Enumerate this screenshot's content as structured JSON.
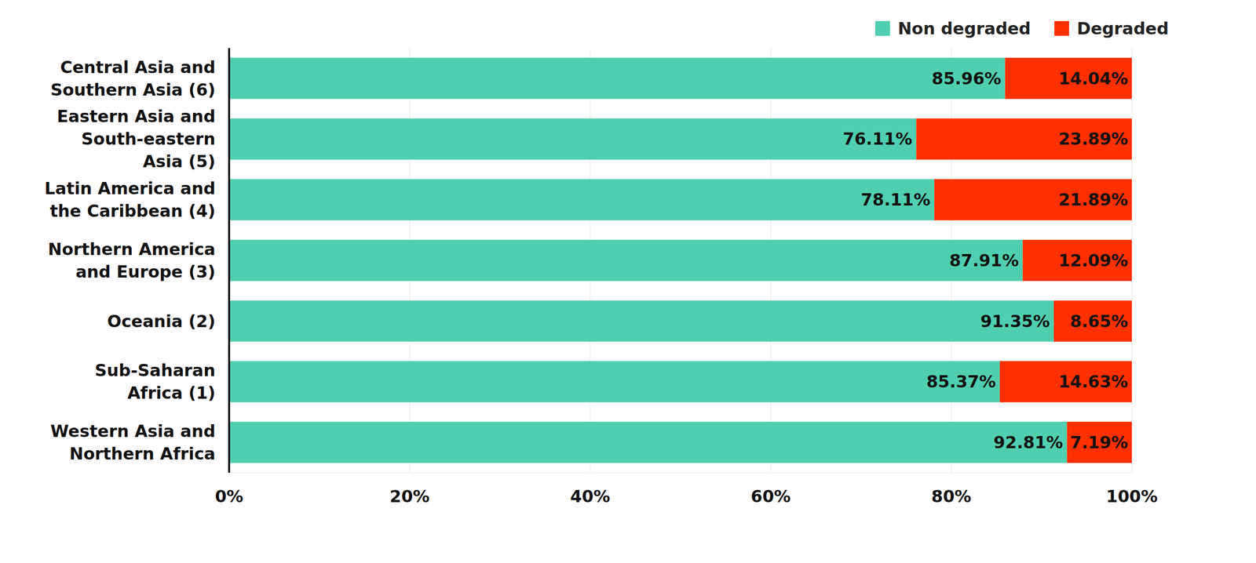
{
  "chart_data": {
    "type": "bar",
    "orientation": "horizontal",
    "stacked": true,
    "data_labels": true,
    "grid": true,
    "legend": "top-right",
    "categories": [
      "Central Asia and Southern Asia (6)",
      "Eastern Asia and South-eastern Asia (5)",
      "Latin America and the Caribbean (4)",
      "Northern America and Europe (3)",
      "Oceania (2)",
      "Sub-Saharan Africa (1)",
      "Western Asia and Northern Africa"
    ],
    "series": [
      {
        "name": "Non degraded",
        "color": "#4fcfb0",
        "values": [
          85.96,
          76.11,
          78.11,
          87.91,
          91.35,
          85.37,
          92.81
        ],
        "value_labels": [
          "85.96%",
          "76.11%",
          "78.11%",
          "87.91%",
          "91.35%",
          "85.37%",
          "92.81%"
        ]
      },
      {
        "name": "Degraded",
        "color": "#ff3000",
        "values": [
          14.04,
          23.89,
          21.89,
          12.09,
          8.65,
          14.63,
          7.19
        ],
        "value_labels": [
          "14.04%",
          "23.89%",
          "21.89%",
          "12.09%",
          "8.65%",
          "14.63%",
          "7.19%"
        ]
      }
    ],
    "xlim": [
      0,
      100
    ],
    "xticks": [
      {
        "value": 0,
        "label": "0%"
      },
      {
        "value": 20,
        "label": "20%"
      },
      {
        "value": 40,
        "label": "40%"
      },
      {
        "value": 60,
        "label": "60%"
      },
      {
        "value": 80,
        "label": "80%"
      },
      {
        "value": 100,
        "label": "100%"
      }
    ]
  }
}
